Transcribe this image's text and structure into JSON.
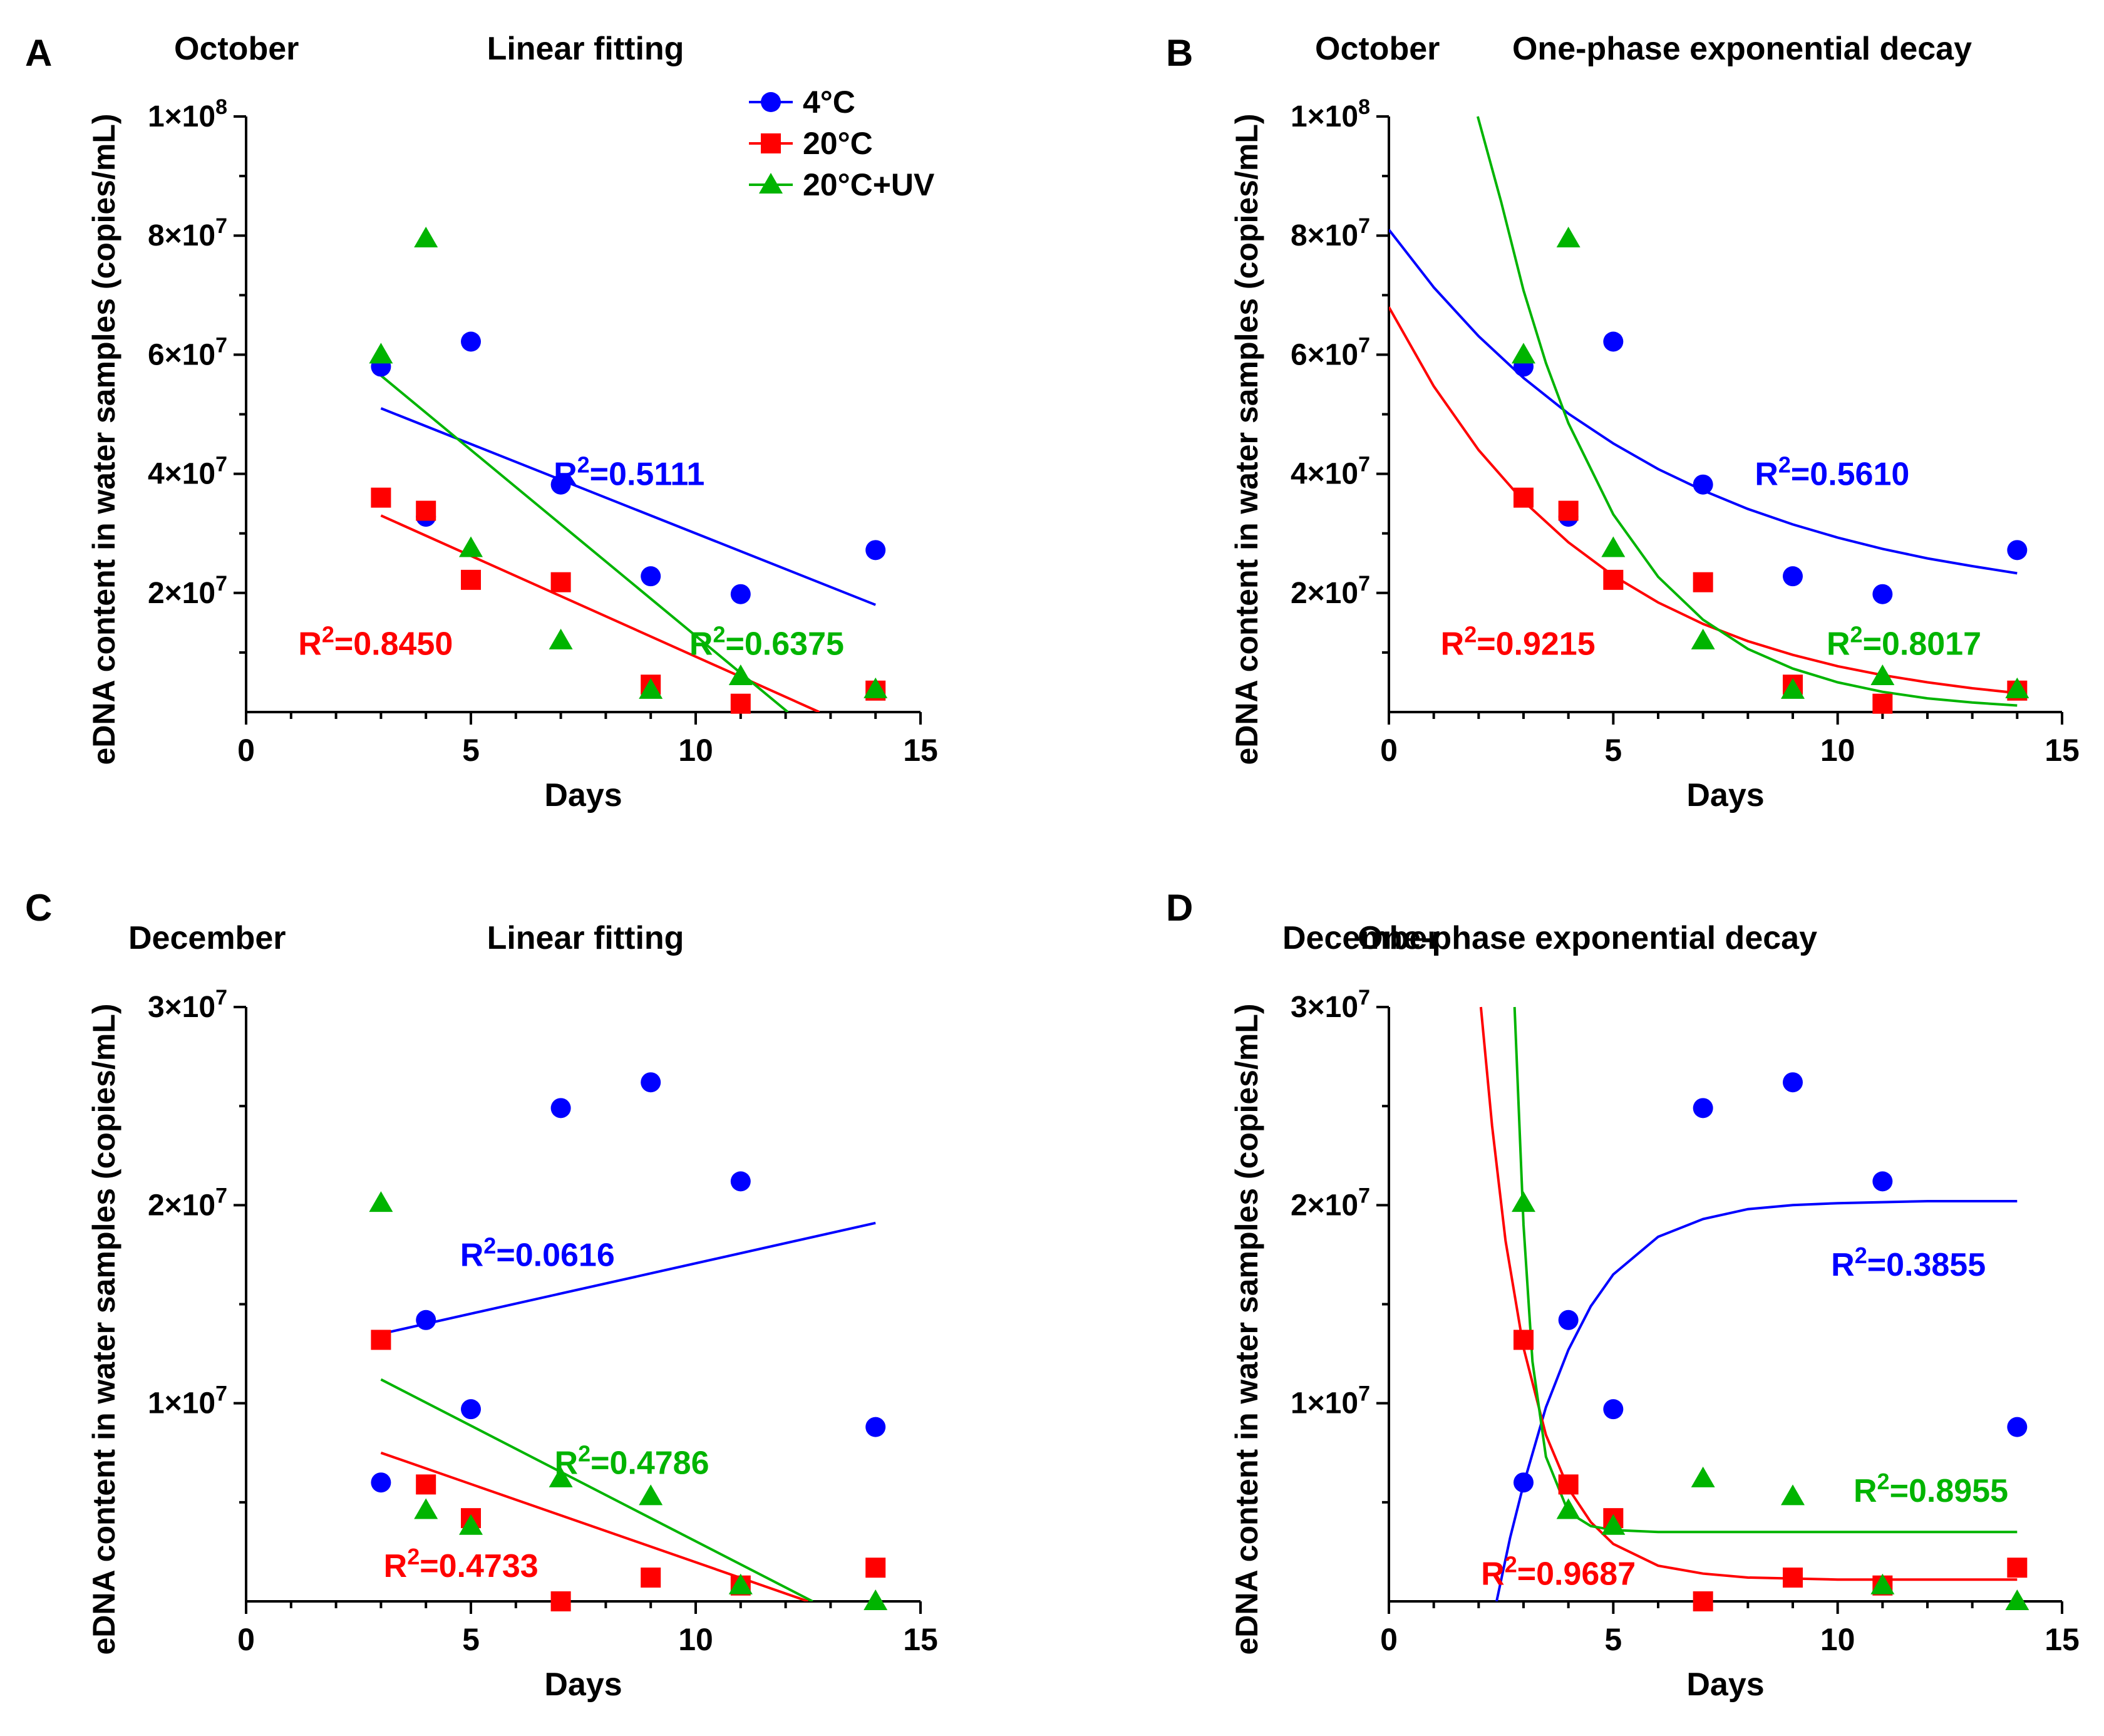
{
  "colors": {
    "c4": "#0000ff",
    "c20": "#ff0000",
    "cuv": "#00b400",
    "axis": "#000000"
  },
  "legend": [
    {
      "label": "4°C",
      "marker": "circle",
      "color": "#0000ff"
    },
    {
      "label": "20°C",
      "marker": "square",
      "color": "#ff0000"
    },
    {
      "label": "20°C+UV",
      "marker": "triangle",
      "color": "#00b400"
    }
  ],
  "chart_data": [
    {
      "type": "scatter",
      "panel": "A",
      "month": "October",
      "title": "Linear fitting",
      "fit": "linear",
      "xlabel": "Days",
      "ylabel": "eDNA content in water samples (copies/mL)",
      "xlim": [
        0,
        15
      ],
      "ylim": [
        0,
        100000000
      ],
      "xticks": [
        {
          "v": 0,
          "l": "0"
        },
        {
          "v": 5,
          "l": "5"
        },
        {
          "v": 10,
          "l": "10"
        },
        {
          "v": 15,
          "l": "15"
        }
      ],
      "yticks": [
        {
          "v": 20000000,
          "m": "2×10",
          "e": "7"
        },
        {
          "v": 40000000,
          "m": "4×10",
          "e": "7"
        },
        {
          "v": 60000000,
          "m": "6×10",
          "e": "7"
        },
        {
          "v": 80000000,
          "m": "8×10",
          "e": "7"
        },
        {
          "v": 100000000,
          "m": "1×10",
          "e": "8"
        }
      ],
      "show_legend": true,
      "series": [
        {
          "name": "4°C",
          "marker": "circle",
          "color": "#0000ff",
          "points": [
            [
              3,
              58000000
            ],
            [
              4,
              32800000
            ],
            [
              5,
              62200000
            ],
            [
              7,
              38200000
            ],
            [
              9,
              22800000
            ],
            [
              11,
              19800000
            ],
            [
              14,
              27200000
            ]
          ],
          "curve": [
            [
              3,
              51000000
            ],
            [
              14,
              18000000
            ]
          ],
          "r2": "=0.5111",
          "r2_at": [
            10.2,
            40000000
          ]
        },
        {
          "name": "20°C",
          "marker": "square",
          "color": "#ff0000",
          "points": [
            [
              3,
              36000000
            ],
            [
              4,
              33800000
            ],
            [
              5,
              22200000
            ],
            [
              7,
              21800000
            ],
            [
              9,
              4600000
            ],
            [
              11,
              1400000
            ],
            [
              14,
              3600000
            ]
          ],
          "curve": [
            [
              3,
              33000000
            ],
            [
              12.75,
              0
            ]
          ],
          "r2": "=0.8450",
          "r2_at": [
            4.6,
            11500000
          ]
        },
        {
          "name": "20°C+UV",
          "marker": "triangle",
          "color": "#00b400",
          "points": [
            [
              3,
              60000000
            ],
            [
              4,
              79500000
            ],
            [
              5,
              27500000
            ],
            [
              7,
              12000000
            ],
            [
              9,
              3700000
            ],
            [
              11,
              6000000
            ],
            [
              14,
              3800000
            ]
          ],
          "curve": [
            [
              3,
              56500000
            ],
            [
              12.05,
              0
            ]
          ],
          "r2": "=0.6375",
          "r2_at": [
            13.3,
            11500000
          ]
        }
      ]
    },
    {
      "type": "scatter",
      "panel": "B",
      "month": "October",
      "title": "One-phase exponential decay",
      "fit": "exponential",
      "xlabel": "Days",
      "ylabel": "eDNA content in water samples (copies/mL)",
      "xlim": [
        0,
        15
      ],
      "ylim": [
        0,
        100000000
      ],
      "xticks": [
        {
          "v": 0,
          "l": "0"
        },
        {
          "v": 5,
          "l": "5"
        },
        {
          "v": 10,
          "l": "10"
        },
        {
          "v": 15,
          "l": "15"
        }
      ],
      "yticks": [
        {
          "v": 20000000,
          "m": "2×10",
          "e": "7"
        },
        {
          "v": 40000000,
          "m": "4×10",
          "e": "7"
        },
        {
          "v": 60000000,
          "m": "6×10",
          "e": "7"
        },
        {
          "v": 80000000,
          "m": "8×10",
          "e": "7"
        },
        {
          "v": 100000000,
          "m": "1×10",
          "e": "8"
        }
      ],
      "show_legend": false,
      "series": [
        {
          "name": "4°C",
          "marker": "circle",
          "color": "#0000ff",
          "points": [
            [
              3,
              58000000
            ],
            [
              4,
              32800000
            ],
            [
              5,
              62200000
            ],
            [
              7,
              38200000
            ],
            [
              9,
              22800000
            ],
            [
              11,
              19800000
            ],
            [
              14,
              27200000
            ]
          ],
          "curve": [
            [
              0,
              81000000
            ],
            [
              1,
              71300000
            ],
            [
              2,
              63100000
            ],
            [
              3,
              56100000
            ],
            [
              4,
              50100000
            ],
            [
              5,
              45100000
            ],
            [
              6,
              40800000
            ],
            [
              7,
              37200000
            ],
            [
              8,
              34100000
            ],
            [
              9,
              31500000
            ],
            [
              10,
              29300000
            ],
            [
              11,
              27400000
            ],
            [
              12,
              25800000
            ],
            [
              13,
              24500000
            ],
            [
              14,
              23300000
            ]
          ],
          "r2": "=0.5610",
          "r2_at": [
            11.6,
            40000000
          ]
        },
        {
          "name": "20°C",
          "marker": "square",
          "color": "#ff0000",
          "points": [
            [
              3,
              36000000
            ],
            [
              4,
              33800000
            ],
            [
              5,
              22200000
            ],
            [
              7,
              21800000
            ],
            [
              9,
              4600000
            ],
            [
              11,
              1400000
            ],
            [
              14,
              3600000
            ]
          ],
          "curve": [
            [
              0,
              68000000
            ],
            [
              1,
              54700000
            ],
            [
              2,
              44000000
            ],
            [
              3,
              35400000
            ],
            [
              4,
              28500000
            ],
            [
              5,
              22900000
            ],
            [
              6,
              18400000
            ],
            [
              7,
              14800000
            ],
            [
              8,
              11900000
            ],
            [
              9,
              9600000
            ],
            [
              10,
              7700000
            ],
            [
              11,
              6200000
            ],
            [
              12,
              5000000
            ],
            [
              13,
              4000000
            ],
            [
              14,
              3200000
            ]
          ],
          "r2": "=0.9215",
          "r2_at": [
            4.6,
            11500000
          ]
        },
        {
          "name": "20°C+UV",
          "marker": "triangle",
          "color": "#00b400",
          "points": [
            [
              3,
              60000000
            ],
            [
              4,
              79500000
            ],
            [
              5,
              27500000
            ],
            [
              7,
              12000000
            ],
            [
              9,
              3700000
            ],
            [
              11,
              6000000
            ],
            [
              14,
              3800000
            ]
          ],
          "curve": [
            [
              1.98,
              100000000
            ],
            [
              2.5,
              85700000
            ],
            [
              3,
              70800000
            ],
            [
              3.5,
              58600000
            ],
            [
              4,
              48500000
            ],
            [
              5,
              33200000
            ],
            [
              6,
              22700000
            ],
            [
              7,
              15500000
            ],
            [
              8,
              10600000
            ],
            [
              9,
              7300000
            ],
            [
              10,
              5000000
            ],
            [
              11,
              3400000
            ],
            [
              12,
              2300000
            ],
            [
              13,
              1600000
            ],
            [
              14,
              1100000
            ]
          ],
          "r2": "=0.8017",
          "r2_at": [
            13.2,
            11500000
          ]
        }
      ]
    },
    {
      "type": "scatter",
      "panel": "C",
      "month": "December",
      "title": "Linear fitting",
      "fit": "linear",
      "xlabel": "Days",
      "ylabel": "eDNA content in water samples (copies/mL)",
      "xlim": [
        0,
        15
      ],
      "ylim": [
        0,
        30000000
      ],
      "xticks": [
        {
          "v": 0,
          "l": "0"
        },
        {
          "v": 5,
          "l": "5"
        },
        {
          "v": 10,
          "l": "10"
        },
        {
          "v": 15,
          "l": "15"
        }
      ],
      "yticks": [
        {
          "v": 10000000,
          "m": "1×10",
          "e": "7"
        },
        {
          "v": 20000000,
          "m": "2×10",
          "e": "7"
        },
        {
          "v": 30000000,
          "m": "3×10",
          "e": "7"
        }
      ],
      "show_legend": false,
      "series": [
        {
          "name": "4°C",
          "marker": "circle",
          "color": "#0000ff",
          "points": [
            [
              3,
              6000000
            ],
            [
              4,
              14200000
            ],
            [
              5,
              9700000
            ],
            [
              7,
              24900000
            ],
            [
              9,
              26200000
            ],
            [
              11,
              21200000
            ],
            [
              14,
              8800000
            ]
          ],
          "curve": [
            [
              3,
              13500000
            ],
            [
              14,
              19100000
            ]
          ],
          "r2": "=0.0616",
          "r2_at": [
            8.2,
            17500000
          ]
        },
        {
          "name": "20°C",
          "marker": "square",
          "color": "#ff0000",
          "points": [
            [
              3,
              13200000
            ],
            [
              4,
              5900000
            ],
            [
              5,
              4200000
            ],
            [
              7,
              0
            ],
            [
              9,
              1200000
            ],
            [
              11,
              800000
            ],
            [
              14,
              1700000
            ]
          ],
          "curve": [
            [
              3,
              7500000
            ],
            [
              12.5,
              0
            ]
          ],
          "r2": "=0.4733",
          "r2_at": [
            6.5,
            1800000
          ]
        },
        {
          "name": "20°C+UV",
          "marker": "triangle",
          "color": "#00b400",
          "points": [
            [
              3,
              20100000
            ],
            [
              4,
              4600000
            ],
            [
              5,
              3800000
            ],
            [
              7,
              6200000
            ],
            [
              9,
              5300000
            ],
            [
              11,
              800000
            ],
            [
              14,
              0
            ]
          ],
          "curve": [
            [
              3,
              11200000
            ],
            [
              12.6,
              0
            ]
          ],
          "r2": "=0.4786",
          "r2_at": [
            10.3,
            7000000
          ]
        }
      ]
    },
    {
      "type": "scatter",
      "panel": "D",
      "month": "December",
      "title": "One-phase exponential decay",
      "fit": "exponential",
      "xlabel": "Days",
      "ylabel": "eDNA content in water samples (copies/mL)",
      "xlim": [
        0,
        15
      ],
      "ylim": [
        0,
        30000000
      ],
      "xticks": [
        {
          "v": 0,
          "l": "0"
        },
        {
          "v": 5,
          "l": "5"
        },
        {
          "v": 10,
          "l": "10"
        },
        {
          "v": 15,
          "l": "15"
        }
      ],
      "yticks": [
        {
          "v": 10000000,
          "m": "1×10",
          "e": "7"
        },
        {
          "v": 20000000,
          "m": "2×10",
          "e": "7"
        },
        {
          "v": 30000000,
          "m": "3×10",
          "e": "7"
        }
      ],
      "show_legend": false,
      "series": [
        {
          "name": "4°C",
          "marker": "circle",
          "color": "#0000ff",
          "points": [
            [
              3,
              6000000
            ],
            [
              4,
              14200000
            ],
            [
              5,
              9700000
            ],
            [
              7,
              24900000
            ],
            [
              9,
              26200000
            ],
            [
              11,
              21200000
            ],
            [
              14,
              8800000
            ]
          ],
          "curve": [
            [
              2.4,
              0
            ],
            [
              2.7,
              3200000
            ],
            [
              3,
              5900000
            ],
            [
              3.5,
              9800000
            ],
            [
              4,
              12700000
            ],
            [
              4.5,
              14900000
            ],
            [
              5,
              16500000
            ],
            [
              6,
              18400000
            ],
            [
              7,
              19300000
            ],
            [
              8,
              19800000
            ],
            [
              9,
              20000000
            ],
            [
              10,
              20100000
            ],
            [
              12,
              20200000
            ],
            [
              14,
              20200000
            ]
          ],
          "r2": "=0.3855",
          "r2_at": [
            13.3,
            17000000
          ]
        },
        {
          "name": "20°C",
          "marker": "square",
          "color": "#ff0000",
          "points": [
            [
              3,
              13200000
            ],
            [
              4,
              5900000
            ],
            [
              5,
              4200000
            ],
            [
              7,
              0
            ],
            [
              9,
              1200000
            ],
            [
              11,
              800000
            ],
            [
              14,
              1700000
            ]
          ],
          "curve": [
            [
              2.05,
              30000000
            ],
            [
              2.3,
              24000000
            ],
            [
              2.6,
              18200000
            ],
            [
              3,
              12800000
            ],
            [
              3.5,
              8400000
            ],
            [
              4,
              5700000
            ],
            [
              4.5,
              4000000
            ],
            [
              5,
              2900000
            ],
            [
              6,
              1800000
            ],
            [
              7,
              1400000
            ],
            [
              8,
              1200000
            ],
            [
              10,
              1100000
            ],
            [
              14,
              1100000
            ]
          ],
          "r2": "=0.9687",
          "r2_at": [
            5.5,
            1400000
          ]
        },
        {
          "name": "20°C+UV",
          "marker": "triangle",
          "color": "#00b400",
          "points": [
            [
              3,
              20100000
            ],
            [
              4,
              4600000
            ],
            [
              5,
              3800000
            ],
            [
              7,
              6200000
            ],
            [
              9,
              5300000
            ],
            [
              11,
              800000
            ],
            [
              14,
              0
            ]
          ],
          "curve": [
            [
              2.8,
              30000000
            ],
            [
              3,
              19000000
            ],
            [
              3.2,
              12100000
            ],
            [
              3.5,
              7300000
            ],
            [
              4,
              4500000
            ],
            [
              4.5,
              3800000
            ],
            [
              5,
              3600000
            ],
            [
              6,
              3500000
            ],
            [
              14,
              3500000
            ]
          ],
          "r2": "=0.8955",
          "r2_at": [
            13.8,
            5600000
          ]
        }
      ]
    }
  ]
}
